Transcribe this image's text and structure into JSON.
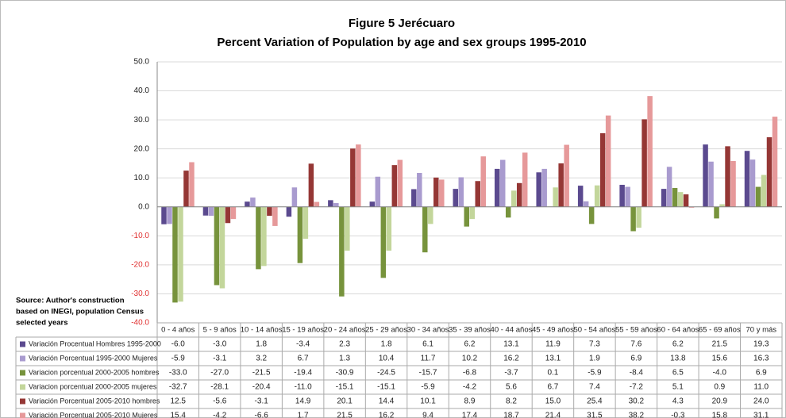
{
  "chart_data": {
    "type": "bar",
    "title": [
      "Figure 5 Jerécuaro",
      "Percent Variation of Population by age and sex groups 1995-2010"
    ],
    "source": [
      "Source: Author's construction",
      " based on INEGI, population Census",
      "selected years"
    ],
    "categories": [
      "0 - 4 años",
      "5 - 9 años",
      "10 - 14 años",
      "15 - 19 años",
      "20 - 24 años",
      "25 - 29 años",
      "30 - 34 años",
      "35 - 39 años",
      "40 - 44 años",
      "45 - 49 años",
      "50 - 54 años",
      "55 - 59 años",
      "60 - 64 años",
      "65 - 69 años",
      "70 y más"
    ],
    "series": [
      {
        "name": "Variación Procentual Hombres 1995-2000",
        "color": "#5b4a8f",
        "values": [
          -6.0,
          -3.0,
          1.8,
          -3.4,
          2.3,
          1.8,
          6.1,
          6.2,
          13.1,
          11.9,
          7.3,
          7.6,
          6.2,
          21.5,
          19.3
        ],
        "value_labels": [
          "-6.0",
          "-3.0",
          "1.8",
          "-3.4",
          "2.3",
          "1.8",
          "6.1",
          "6.2",
          "13.1",
          "11.9",
          "7.3",
          "7.6",
          "6.2",
          "21.5",
          "19.3"
        ]
      },
      {
        "name": "Variación Porcentual 1995-2000 Mujeres",
        "color": "#a99bcf",
        "values": [
          -5.9,
          -3.1,
          3.2,
          6.7,
          1.3,
          10.4,
          11.7,
          10.2,
          16.2,
          13.1,
          1.9,
          6.9,
          13.8,
          15.6,
          16.3
        ],
        "value_labels": [
          "-5.9",
          "-3.1",
          "3.2",
          "6.7",
          "1.3",
          "10.4",
          "11.7",
          "10.2",
          "16.2",
          "13.1",
          "1.9",
          "6.9",
          "13.8",
          "15.6",
          "16.3"
        ]
      },
      {
        "name": "Variacion porcentual 2000-2005 hombres",
        "color": "#77933c",
        "values": [
          -33.0,
          -27.0,
          -21.5,
          -19.4,
          -30.9,
          -24.5,
          -15.7,
          -6.8,
          -3.7,
          0.1,
          -5.9,
          -8.4,
          6.5,
          -4.0,
          6.9
        ],
        "value_labels": [
          "-33.0",
          "-27.0",
          "-21.5",
          "-19.4",
          "-30.9",
          "-24.5",
          "-15.7",
          "-6.8",
          "-3.7",
          "0.1",
          "-5.9",
          "-8.4",
          "6.5",
          "-4.0",
          "6.9"
        ]
      },
      {
        "name": "Variacion porcentual 2000-2005 mujeres",
        "color": "#c3d69b",
        "values": [
          -32.7,
          -28.1,
          -20.4,
          -11.0,
          -15.1,
          -15.1,
          -5.9,
          -4.2,
          5.6,
          6.7,
          7.4,
          -7.2,
          5.1,
          0.9,
          11.0
        ],
        "value_labels": [
          "-32.7",
          "-28.1",
          "-20.4",
          "-11.0",
          "-15.1",
          "-15.1",
          "-5.9",
          "-4.2",
          "5.6",
          "6.7",
          "7.4",
          "-7.2",
          "5.1",
          "0.9",
          "11.0"
        ]
      },
      {
        "name": "Variación Porcentual 2005-2010 hombres",
        "color": "#953735",
        "values": [
          12.5,
          -5.6,
          -3.1,
          14.9,
          20.1,
          14.4,
          10.1,
          8.9,
          8.2,
          15.0,
          25.4,
          30.2,
          4.3,
          20.9,
          24.0
        ],
        "value_labels": [
          "12.5",
          "-5.6",
          "-3.1",
          "14.9",
          "20.1",
          "14.4",
          "10.1",
          "8.9",
          "8.2",
          "15.0",
          "25.4",
          "30.2",
          "4.3",
          "20.9",
          "24.0"
        ]
      },
      {
        "name": "Variación Porcentual 2005-2010 Mujeres",
        "color": "#e6999a",
        "values": [
          15.4,
          -4.2,
          -6.6,
          1.7,
          21.5,
          16.2,
          9.4,
          17.4,
          18.7,
          21.4,
          31.5,
          38.2,
          -0.3,
          15.8,
          31.1
        ],
        "value_labels": [
          "15.4",
          "-4.2",
          "-6.6",
          "1.7",
          "21.5",
          "16.2",
          "9.4",
          "17.4",
          "18.7",
          "21.4",
          "31.5",
          "38.2",
          "-0.3",
          "15.8",
          "31.1"
        ]
      }
    ],
    "ylim": [
      -40,
      50
    ],
    "yticks": [
      {
        "value": -40,
        "label": "-40.0"
      },
      {
        "value": -30,
        "label": "-30.0"
      },
      {
        "value": -20,
        "label": "-20.0"
      },
      {
        "value": -10,
        "label": "-10.0"
      },
      {
        "value": 0,
        "label": "0.0"
      },
      {
        "value": 10,
        "label": "10.0"
      },
      {
        "value": 20,
        "label": "20.0"
      },
      {
        "value": 30,
        "label": "30.0"
      },
      {
        "value": 40,
        "label": "40.0"
      },
      {
        "value": 50,
        "label": "50.0"
      }
    ],
    "grid": true,
    "negative_tick_color": "#e03030"
  }
}
